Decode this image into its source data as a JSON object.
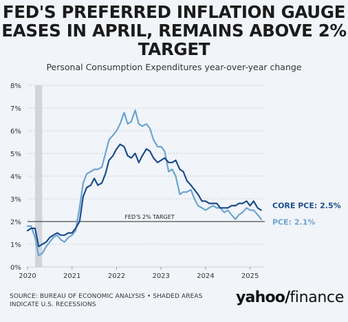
{
  "header": {
    "title_line1": "FED'S PREFERRED INFLATION GAUGE",
    "title_line2": "EASES IN APRIL, REMAINS ABOVE 2%",
    "title_line3": "TARGET",
    "subtitle": "Personal Consumption Expenditures year-over-year change"
  },
  "footer": {
    "source_line1": "SOURCE: BUREAU OF ECONOMIC ANALYSIS • SHADED AREAS",
    "source_line2": "INDICATE U.S. RECESSIONS",
    "logo_main": "yahoo",
    "logo_slash": "/",
    "logo_sub": "finance"
  },
  "colors": {
    "core": "#1a4c8a",
    "pce": "#6aa4d0",
    "target_line": "#222222",
    "recession": "#d2d6dc",
    "grid": "#c9ced6"
  },
  "chart_data": {
    "type": "line",
    "title": "",
    "xlabel": "",
    "ylabel": "",
    "ylim": [
      0,
      8
    ],
    "xlim": [
      2020.0,
      2025.33
    ],
    "yticks": [
      "0%",
      "1%",
      "2%",
      "3%",
      "4%",
      "5%",
      "6%",
      "7%",
      "8%"
    ],
    "xticks": [
      {
        "value": 2020,
        "label": "2020"
      },
      {
        "value": 2021,
        "label": "2021"
      },
      {
        "value": 2022,
        "label": "2022"
      },
      {
        "value": 2023,
        "label": "2023"
      },
      {
        "value": 2024,
        "label": "2024"
      },
      {
        "value": 2025,
        "label": "2025"
      }
    ],
    "grid": true,
    "recession": {
      "start": 2020.17,
      "end": 2020.33
    },
    "reference_line": {
      "y": 2.0,
      "label": "FED'S 2% TARGET"
    },
    "series": [
      {
        "name": "CORE PCE",
        "end_label": "CORE PCE: 2.5%",
        "color_key": "core",
        "points": [
          [
            2020.0,
            1.6
          ],
          [
            2020.08,
            1.7
          ],
          [
            2020.17,
            1.7
          ],
          [
            2020.25,
            0.9
          ],
          [
            2020.33,
            1.0
          ],
          [
            2020.42,
            1.1
          ],
          [
            2020.5,
            1.3
          ],
          [
            2020.58,
            1.4
          ],
          [
            2020.67,
            1.5
          ],
          [
            2020.75,
            1.4
          ],
          [
            2020.83,
            1.4
          ],
          [
            2020.92,
            1.5
          ],
          [
            2021.0,
            1.5
          ],
          [
            2021.08,
            1.7
          ],
          [
            2021.17,
            2.0
          ],
          [
            2021.25,
            3.1
          ],
          [
            2021.33,
            3.5
          ],
          [
            2021.42,
            3.6
          ],
          [
            2021.5,
            3.9
          ],
          [
            2021.58,
            3.6
          ],
          [
            2021.67,
            3.7
          ],
          [
            2021.75,
            4.1
          ],
          [
            2021.83,
            4.7
          ],
          [
            2021.92,
            4.9
          ],
          [
            2022.0,
            5.2
          ],
          [
            2022.08,
            5.4
          ],
          [
            2022.17,
            5.3
          ],
          [
            2022.25,
            4.9
          ],
          [
            2022.33,
            4.8
          ],
          [
            2022.42,
            5.0
          ],
          [
            2022.5,
            4.6
          ],
          [
            2022.58,
            4.9
          ],
          [
            2022.67,
            5.2
          ],
          [
            2022.75,
            5.1
          ],
          [
            2022.83,
            4.8
          ],
          [
            2022.92,
            4.6
          ],
          [
            2023.0,
            4.7
          ],
          [
            2023.08,
            4.8
          ],
          [
            2023.17,
            4.6
          ],
          [
            2023.25,
            4.6
          ],
          [
            2023.33,
            4.7
          ],
          [
            2023.42,
            4.3
          ],
          [
            2023.5,
            4.2
          ],
          [
            2023.58,
            3.8
          ],
          [
            2023.67,
            3.6
          ],
          [
            2023.75,
            3.4
          ],
          [
            2023.83,
            3.2
          ],
          [
            2023.92,
            2.9
          ],
          [
            2024.0,
            2.9
          ],
          [
            2024.08,
            2.8
          ],
          [
            2024.17,
            2.8
          ],
          [
            2024.25,
            2.8
          ],
          [
            2024.33,
            2.6
          ],
          [
            2024.42,
            2.6
          ],
          [
            2024.5,
            2.6
          ],
          [
            2024.58,
            2.7
          ],
          [
            2024.67,
            2.7
          ],
          [
            2024.75,
            2.8
          ],
          [
            2024.83,
            2.8
          ],
          [
            2024.92,
            2.9
          ],
          [
            2025.0,
            2.7
          ],
          [
            2025.08,
            2.9
          ],
          [
            2025.17,
            2.6
          ],
          [
            2025.25,
            2.5
          ]
        ]
      },
      {
        "name": "PCE",
        "end_label": "PCE: 2.1%",
        "color_key": "pce",
        "points": [
          [
            2020.0,
            1.8
          ],
          [
            2020.08,
            1.8
          ],
          [
            2020.17,
            1.3
          ],
          [
            2020.25,
            0.5
          ],
          [
            2020.33,
            0.6
          ],
          [
            2020.42,
            0.9
          ],
          [
            2020.5,
            1.1
          ],
          [
            2020.58,
            1.3
          ],
          [
            2020.67,
            1.4
          ],
          [
            2020.75,
            1.2
          ],
          [
            2020.83,
            1.1
          ],
          [
            2020.92,
            1.3
          ],
          [
            2021.0,
            1.4
          ],
          [
            2021.08,
            1.6
          ],
          [
            2021.17,
            2.6
          ],
          [
            2021.25,
            3.7
          ],
          [
            2021.33,
            4.1
          ],
          [
            2021.42,
            4.2
          ],
          [
            2021.5,
            4.3
          ],
          [
            2021.58,
            4.3
          ],
          [
            2021.67,
            4.4
          ],
          [
            2021.75,
            5.0
          ],
          [
            2021.83,
            5.6
          ],
          [
            2021.92,
            5.8
          ],
          [
            2022.0,
            6.0
          ],
          [
            2022.08,
            6.3
          ],
          [
            2022.17,
            6.8
          ],
          [
            2022.25,
            6.3
          ],
          [
            2022.33,
            6.4
          ],
          [
            2022.42,
            6.9
          ],
          [
            2022.5,
            6.3
          ],
          [
            2022.58,
            6.2
          ],
          [
            2022.67,
            6.3
          ],
          [
            2022.75,
            6.1
          ],
          [
            2022.83,
            5.6
          ],
          [
            2022.92,
            5.3
          ],
          [
            2023.0,
            5.3
          ],
          [
            2023.08,
            5.1
          ],
          [
            2023.17,
            4.2
          ],
          [
            2023.25,
            4.3
          ],
          [
            2023.33,
            4.0
          ],
          [
            2023.42,
            3.2
          ],
          [
            2023.5,
            3.3
          ],
          [
            2023.58,
            3.3
          ],
          [
            2023.67,
            3.4
          ],
          [
            2023.75,
            3.0
          ],
          [
            2023.83,
            2.7
          ],
          [
            2023.92,
            2.6
          ],
          [
            2024.0,
            2.5
          ],
          [
            2024.08,
            2.6
          ],
          [
            2024.17,
            2.7
          ],
          [
            2024.25,
            2.6
          ],
          [
            2024.33,
            2.6
          ],
          [
            2024.42,
            2.4
          ],
          [
            2024.5,
            2.5
          ],
          [
            2024.58,
            2.3
          ],
          [
            2024.67,
            2.1
          ],
          [
            2024.75,
            2.3
          ],
          [
            2024.83,
            2.4
          ],
          [
            2024.92,
            2.6
          ],
          [
            2025.0,
            2.5
          ],
          [
            2025.08,
            2.5
          ],
          [
            2025.17,
            2.3
          ],
          [
            2025.25,
            2.1
          ]
        ]
      }
    ]
  }
}
